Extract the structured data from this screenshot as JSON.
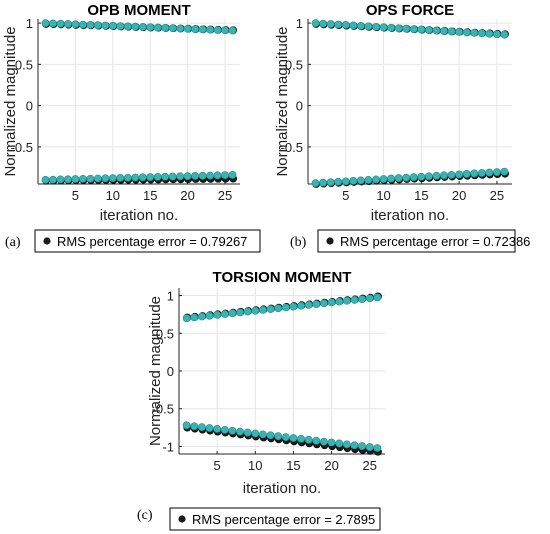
{
  "colors": {
    "measured": "#1a1a1a",
    "estimated": "#3bb3b3",
    "estimated_edge": "#1e8c8c",
    "grid": "#e6e6e6",
    "axis": "#262626"
  },
  "chart_data": [
    {
      "type": "scatter",
      "panel_label": "(a)",
      "title": "OPB MOMENT",
      "xlabel": "iteration no.",
      "ylabel": "Normalized magnitude",
      "xlim": [
        0,
        27
      ],
      "ylim": [
        -0.95,
        1.05
      ],
      "xticks": [
        5,
        10,
        15,
        20,
        25
      ],
      "xtick_labels": [
        "5",
        "10",
        "15",
        "20",
        "25"
      ],
      "yticks": [
        1,
        0.5,
        0,
        -0.5
      ],
      "ytick_labels": [
        "1",
        "0.5",
        "0",
        "-0.5"
      ],
      "grid": true,
      "x": [
        1,
        2,
        3,
        4,
        5,
        6,
        7,
        8,
        9,
        10,
        11,
        12,
        13,
        14,
        15,
        16,
        17,
        18,
        19,
        20,
        21,
        22,
        23,
        24,
        25,
        26
      ],
      "series": [
        {
          "role": "measured",
          "upper": [
            1.0,
            0.997,
            0.994,
            0.991,
            0.988,
            0.985,
            0.982,
            0.979,
            0.976,
            0.973,
            0.969,
            0.966,
            0.963,
            0.96,
            0.957,
            0.954,
            0.951,
            0.948,
            0.945,
            0.942,
            0.938,
            0.935,
            0.932,
            0.929,
            0.926,
            0.923
          ],
          "lower": [
            -0.9,
            -0.899,
            -0.898,
            -0.897,
            -0.896,
            -0.895,
            -0.894,
            -0.893,
            -0.892,
            -0.891,
            -0.89,
            -0.889,
            -0.888,
            -0.887,
            -0.886,
            -0.885,
            -0.884,
            -0.883,
            -0.882,
            -0.881,
            -0.88,
            -0.879,
            -0.878,
            -0.877,
            -0.876,
            -0.875
          ]
        },
        {
          "role": "estimated",
          "upper": [
            1.0,
            0.996,
            0.993,
            0.989,
            0.986,
            0.982,
            0.978,
            0.975,
            0.971,
            0.968,
            0.964,
            0.96,
            0.957,
            0.953,
            0.95,
            0.946,
            0.942,
            0.939,
            0.935,
            0.932,
            0.928,
            0.924,
            0.921,
            0.917,
            0.914,
            0.91
          ],
          "lower": [
            -0.9,
            -0.898,
            -0.895,
            -0.893,
            -0.89,
            -0.888,
            -0.886,
            -0.883,
            -0.881,
            -0.879,
            -0.876,
            -0.874,
            -0.871,
            -0.869,
            -0.867,
            -0.864,
            -0.862,
            -0.86,
            -0.857,
            -0.855,
            -0.852,
            -0.85,
            -0.848,
            -0.845,
            -0.843,
            -0.84
          ]
        }
      ],
      "legend": {
        "label": "RMS percentage error = 0.79267"
      }
    },
    {
      "type": "scatter",
      "panel_label": "(b)",
      "title": "OPS FORCE",
      "xlabel": "iteration no.",
      "ylabel": "Normalized magnitude",
      "xlim": [
        0,
        27
      ],
      "ylim": [
        -0.95,
        1.05
      ],
      "xticks": [
        5,
        10,
        15,
        20,
        25
      ],
      "xtick_labels": [
        "5",
        "10",
        "15",
        "20",
        "25"
      ],
      "yticks": [
        1,
        0.5,
        0,
        -0.5
      ],
      "ytick_labels": [
        "1",
        "0.5",
        "0",
        "-0.5"
      ],
      "grid": true,
      "x": [
        1,
        2,
        3,
        4,
        5,
        6,
        7,
        8,
        9,
        10,
        11,
        12,
        13,
        14,
        15,
        16,
        17,
        18,
        19,
        20,
        21,
        22,
        23,
        24,
        25,
        26
      ],
      "series": [
        {
          "role": "measured",
          "upper": [
            1.0,
            0.995,
            0.99,
            0.985,
            0.98,
            0.975,
            0.97,
            0.965,
            0.96,
            0.955,
            0.95,
            0.945,
            0.94,
            0.935,
            0.93,
            0.925,
            0.92,
            0.915,
            0.91,
            0.905,
            0.9,
            0.895,
            0.89,
            0.885,
            0.88,
            0.875
          ],
          "lower": [
            -0.94,
            -0.935,
            -0.93,
            -0.925,
            -0.92,
            -0.915,
            -0.91,
            -0.905,
            -0.9,
            -0.895,
            -0.89,
            -0.885,
            -0.88,
            -0.875,
            -0.87,
            -0.865,
            -0.86,
            -0.855,
            -0.85,
            -0.845,
            -0.84,
            -0.835,
            -0.83,
            -0.825,
            -0.82,
            -0.815
          ]
        },
        {
          "role": "estimated",
          "upper": [
            1.0,
            0.994,
            0.989,
            0.983,
            0.978,
            0.972,
            0.966,
            0.961,
            0.955,
            0.95,
            0.944,
            0.938,
            0.933,
            0.927,
            0.922,
            0.916,
            0.91,
            0.905,
            0.899,
            0.894,
            0.888,
            0.882,
            0.877,
            0.871,
            0.866,
            0.86
          ],
          "lower": [
            -0.94,
            -0.934,
            -0.929,
            -0.923,
            -0.918,
            -0.912,
            -0.906,
            -0.901,
            -0.895,
            -0.89,
            -0.884,
            -0.878,
            -0.873,
            -0.867,
            -0.862,
            -0.856,
            -0.85,
            -0.845,
            -0.839,
            -0.834,
            -0.828,
            -0.822,
            -0.817,
            -0.811,
            -0.806,
            -0.8
          ]
        }
      ],
      "legend": {
        "label": "RMS percentage error = 0.72386"
      }
    },
    {
      "type": "scatter",
      "panel_label": "(c)",
      "title": "TORSION MOMENT",
      "xlabel": "iteration no.",
      "ylabel": "Normalized magnitude",
      "xlim": [
        0,
        27
      ],
      "ylim": [
        -1.1,
        1.1
      ],
      "xticks": [
        5,
        10,
        15,
        20,
        25
      ],
      "xtick_labels": [
        "5",
        "10",
        "15",
        "20",
        "25"
      ],
      "yticks": [
        1,
        0.5,
        0,
        -0.5,
        -1
      ],
      "ytick_labels": [
        "1",
        "0.5",
        "0",
        "-0.5",
        "-1"
      ],
      "grid": true,
      "x": [
        1,
        2,
        3,
        4,
        5,
        6,
        7,
        8,
        9,
        10,
        11,
        12,
        13,
        14,
        15,
        16,
        17,
        18,
        19,
        20,
        21,
        22,
        23,
        24,
        25,
        26
      ],
      "series": [
        {
          "role": "measured",
          "upper": [
            0.72,
            0.73,
            0.74,
            0.751,
            0.762,
            0.773,
            0.784,
            0.795,
            0.806,
            0.817,
            0.828,
            0.839,
            0.85,
            0.861,
            0.872,
            0.883,
            0.894,
            0.905,
            0.916,
            0.927,
            0.938,
            0.949,
            0.96,
            0.971,
            0.982,
            1.0
          ],
          "lower": [
            -0.74,
            -0.753,
            -0.766,
            -0.779,
            -0.792,
            -0.805,
            -0.818,
            -0.831,
            -0.844,
            -0.857,
            -0.87,
            -0.883,
            -0.896,
            -0.909,
            -0.922,
            -0.935,
            -0.948,
            -0.961,
            -0.974,
            -0.987,
            -1.0,
            -1.012,
            -1.024,
            -1.036,
            -1.048,
            -1.06
          ]
        },
        {
          "role": "estimated",
          "upper": [
            0.7,
            0.711,
            0.722,
            0.733,
            0.744,
            0.755,
            0.766,
            0.777,
            0.788,
            0.799,
            0.81,
            0.821,
            0.832,
            0.843,
            0.854,
            0.865,
            0.876,
            0.887,
            0.898,
            0.909,
            0.92,
            0.931,
            0.942,
            0.953,
            0.964,
            0.975
          ],
          "lower": [
            -0.72,
            -0.732,
            -0.744,
            -0.756,
            -0.768,
            -0.78,
            -0.792,
            -0.804,
            -0.816,
            -0.828,
            -0.84,
            -0.852,
            -0.864,
            -0.876,
            -0.888,
            -0.9,
            -0.912,
            -0.924,
            -0.936,
            -0.948,
            -0.96,
            -0.972,
            -0.984,
            -0.996,
            -1.008,
            -1.02
          ]
        }
      ],
      "legend": {
        "label": "RMS percentage error = 2.7895"
      }
    }
  ]
}
